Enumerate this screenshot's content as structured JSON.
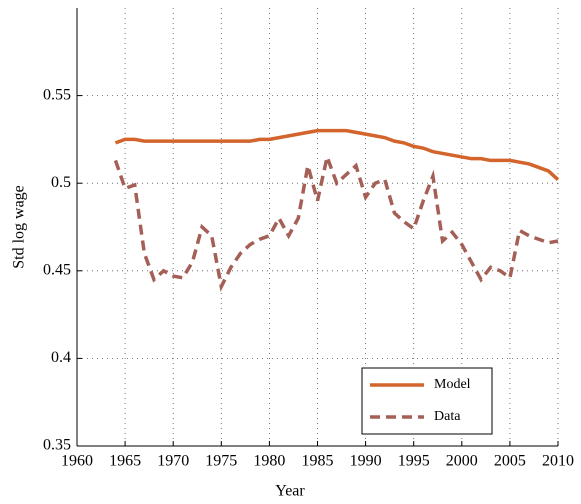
{
  "chart_data": {
    "type": "line",
    "x_label": "Year",
    "y_label": "Std log wage",
    "x": [
      1964,
      1965,
      1966,
      1967,
      1968,
      1969,
      1970,
      1971,
      1972,
      1973,
      1974,
      1975,
      1976,
      1977,
      1978,
      1979,
      1980,
      1981,
      1982,
      1983,
      1984,
      1985,
      1986,
      1987,
      1988,
      1989,
      1990,
      1991,
      1992,
      1993,
      1994,
      1995,
      1996,
      1997,
      1998,
      1999,
      2000,
      2001,
      2002,
      2003,
      2004,
      2005,
      2006,
      2007,
      2008,
      2009,
      2010
    ],
    "series": [
      {
        "name": "Model",
        "color": "#d2642c",
        "dashed": false,
        "values": [
          0.523,
          0.525,
          0.525,
          0.524,
          0.524,
          0.524,
          0.524,
          0.524,
          0.524,
          0.524,
          0.524,
          0.524,
          0.524,
          0.524,
          0.524,
          0.525,
          0.525,
          0.526,
          0.527,
          0.528,
          0.529,
          0.53,
          0.53,
          0.53,
          0.53,
          0.529,
          0.528,
          0.527,
          0.526,
          0.524,
          0.523,
          0.521,
          0.52,
          0.518,
          0.517,
          0.516,
          0.515,
          0.514,
          0.514,
          0.513,
          0.513,
          0.513,
          0.512,
          0.511,
          0.509,
          0.507,
          0.502
        ]
      },
      {
        "name": "Data",
        "color": "#a45f56",
        "dashed": true,
        "values": [
          0.513,
          0.497,
          0.499,
          0.46,
          0.445,
          0.45,
          0.447,
          0.446,
          0.455,
          0.475,
          0.47,
          0.441,
          0.452,
          0.46,
          0.465,
          0.468,
          0.47,
          0.48,
          0.47,
          0.48,
          0.51,
          0.49,
          0.515,
          0.5,
          0.505,
          0.51,
          0.492,
          0.5,
          0.502,
          0.483,
          0.478,
          0.474,
          0.49,
          0.504,
          0.467,
          0.472,
          0.465,
          0.455,
          0.445,
          0.452,
          0.45,
          0.446,
          0.473,
          0.47,
          0.468,
          0.466,
          0.467
        ]
      }
    ],
    "xlim": [
      1960,
      2010
    ],
    "xticks": [
      1960,
      1965,
      1970,
      1975,
      1980,
      1985,
      1990,
      1995,
      2000,
      2005,
      2010
    ],
    "ylim": [
      0.35,
      0.6
    ],
    "yticks": [
      0.35,
      0.4,
      0.45,
      0.5,
      0.55
    ],
    "grid": true,
    "legend": "lower right"
  }
}
